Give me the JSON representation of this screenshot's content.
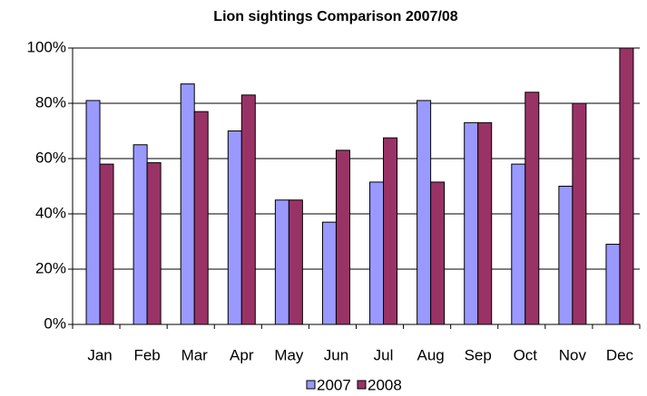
{
  "chart_data": {
    "type": "bar",
    "title": "Lion sightings Comparison 2007/08",
    "categories": [
      "Jan",
      "Feb",
      "Mar",
      "Apr",
      "May",
      "Jun",
      "Jul",
      "Aug",
      "Sep",
      "Oct",
      "Nov",
      "Dec"
    ],
    "series": [
      {
        "name": "2007",
        "color": "#9999ff",
        "values": [
          81,
          65,
          87,
          70,
          45,
          37,
          51.5,
          81,
          73,
          58,
          50,
          29
        ]
      },
      {
        "name": "2008",
        "color": "#993366",
        "values": [
          58,
          58.5,
          77,
          83,
          45,
          63,
          67.5,
          51.5,
          73,
          84,
          80,
          100
        ]
      }
    ],
    "ylim": [
      0,
      100
    ],
    "yticks": [
      {
        "value": 0,
        "label": "0%"
      },
      {
        "value": 20,
        "label": "20%"
      },
      {
        "value": 40,
        "label": "40%"
      },
      {
        "value": 60,
        "label": "60%"
      },
      {
        "value": 80,
        "label": "80%"
      },
      {
        "value": 100,
        "label": "100%"
      }
    ],
    "grid": true,
    "legend": "bottom"
  }
}
